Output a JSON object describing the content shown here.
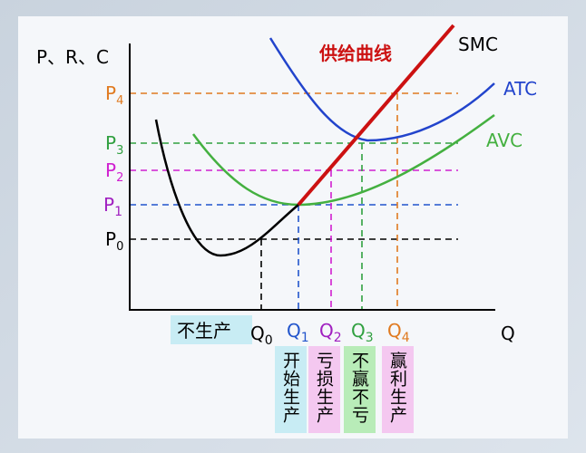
{
  "axis_label_y": "P、R、C",
  "axis_label_x": "Q",
  "supply_curve_label": "供给曲线",
  "curves": [
    {
      "label": "SMC"
    },
    {
      "label": "ATC"
    },
    {
      "label": "AVC"
    }
  ],
  "price_levels": [
    {
      "symbol": "P",
      "subscript": "0"
    },
    {
      "symbol": "P",
      "subscript": "1"
    },
    {
      "symbol": "P",
      "subscript": "2"
    },
    {
      "symbol": "P",
      "subscript": "3"
    },
    {
      "symbol": "P",
      "subscript": "4"
    }
  ],
  "quantities": [
    {
      "symbol": "Q",
      "subscript": "0"
    },
    {
      "symbol": "Q",
      "subscript": "1"
    },
    {
      "symbol": "Q",
      "subscript": "2"
    },
    {
      "symbol": "Q",
      "subscript": "3"
    },
    {
      "symbol": "Q",
      "subscript": "4"
    }
  ],
  "regions": [
    {
      "label": "不生产"
    },
    {
      "label": "开始生产"
    },
    {
      "label": "亏损生产"
    },
    {
      "label": "不赢不亏"
    },
    {
      "label": "赢利生产"
    }
  ]
}
